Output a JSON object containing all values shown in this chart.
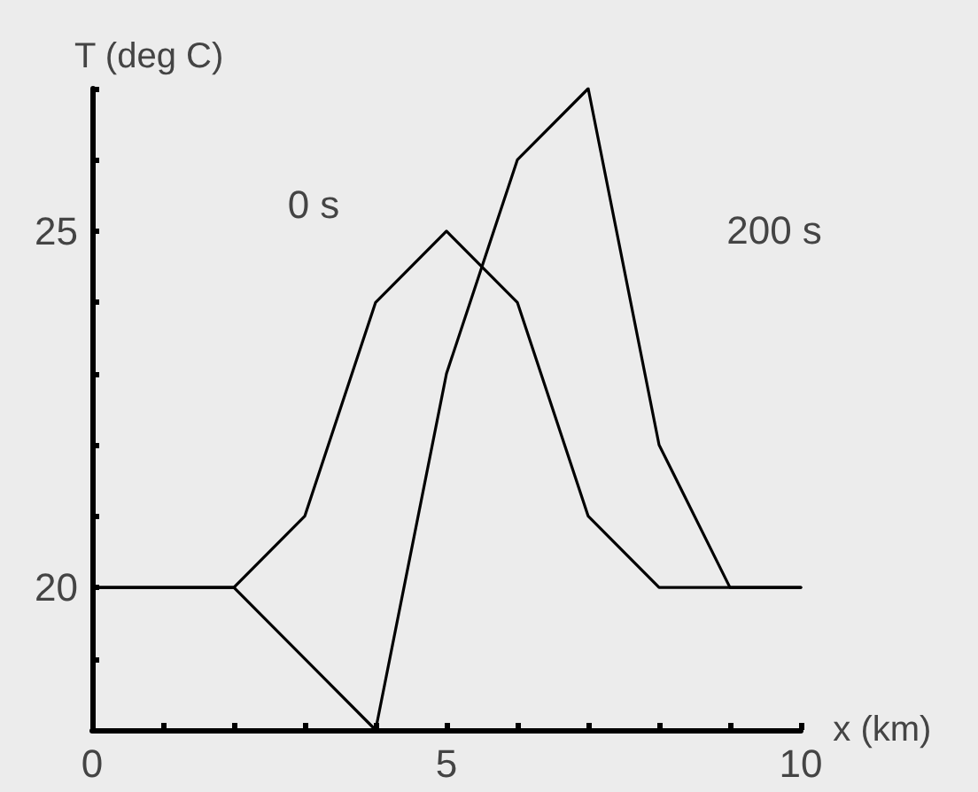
{
  "chart_data": {
    "type": "line",
    "xlabel": "x (km)",
    "ylabel": "T (deg C)",
    "xlim": [
      0,
      10
    ],
    "ylim": [
      18,
      27
    ],
    "xticks": [
      0,
      {
        "value": 1,
        "label": null
      },
      {
        "value": 2,
        "label": null
      },
      {
        "value": 3,
        "label": null
      },
      {
        "value": 4,
        "label": null
      },
      5,
      {
        "value": 6,
        "label": null
      },
      {
        "value": 7,
        "label": null
      },
      {
        "value": 8,
        "label": null
      },
      {
        "value": 9,
        "label": null
      },
      10
    ],
    "yticks": [
      {
        "value": 18,
        "label": null
      },
      {
        "value": 19,
        "label": null
      },
      20,
      {
        "value": 21,
        "label": null
      },
      {
        "value": 22,
        "label": null
      },
      {
        "value": 23,
        "label": null
      },
      {
        "value": 24,
        "label": null
      },
      25,
      {
        "value": 26,
        "label": null
      },
      {
        "value": 27,
        "label": null
      }
    ],
    "series": [
      {
        "name": "0 s",
        "color": "#000000",
        "x": [
          0,
          2,
          3,
          4,
          5,
          6,
          7,
          8,
          10
        ],
        "values": [
          20,
          20,
          21,
          24,
          25,
          24,
          21,
          20,
          20
        ]
      },
      {
        "name": "200 s",
        "color": "#000000",
        "x": [
          0,
          2,
          4,
          5,
          6,
          7,
          8,
          9,
          10
        ],
        "values": [
          20,
          20,
          18,
          23,
          26,
          27,
          22,
          20,
          20
        ]
      }
    ],
    "grid": false,
    "marker": "none",
    "line_style": "solid"
  }
}
